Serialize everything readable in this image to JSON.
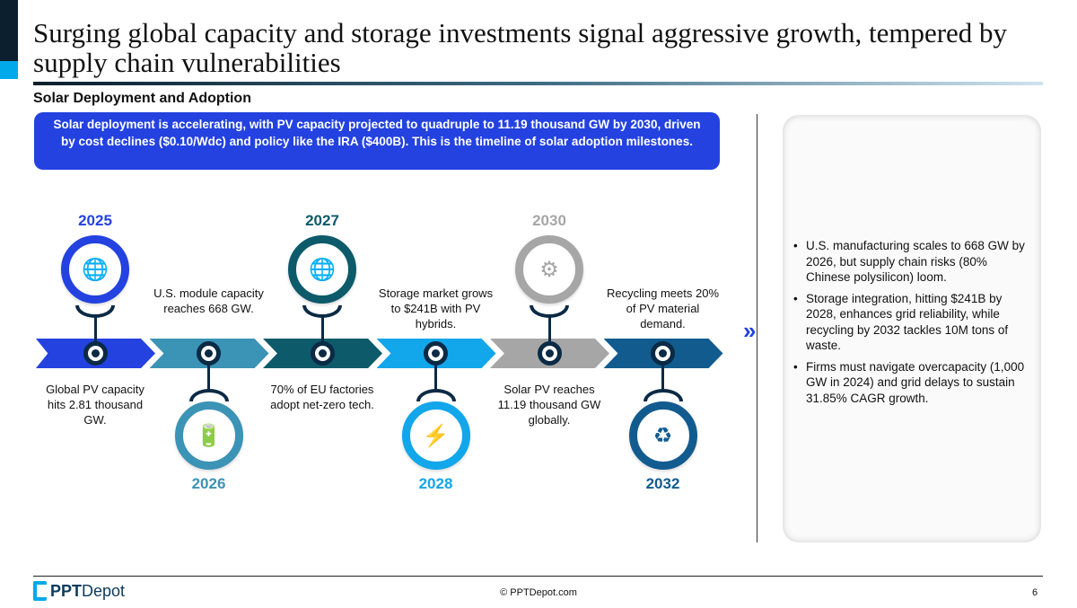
{
  "title": "Surging global capacity and storage investments signal aggressive growth, tempered by supply chain vulnerabilities",
  "subtitle": "Solar Deployment and Adoption",
  "summary": "Solar deployment is accelerating, with PV capacity projected to quadruple to 11.19 thousand GW by 2030, driven by cost declines ($0.10/Wdc) and policy like the IRA ($400B).  This is the timeline of solar adoption milestones.",
  "milestones": [
    {
      "year": "2025",
      "text": "Global PV capacity hits 2.81 thousand GW.",
      "icon": "globe-icon",
      "color": "#2342e0",
      "position": "top"
    },
    {
      "year": "2026",
      "text": "U.S. module capacity reaches 668 GW.",
      "icon": "battery-icon",
      "color": "#3b93b5",
      "position": "bottom"
    },
    {
      "year": "2027",
      "text": "70% of EU factories adopt net-zero tech.",
      "icon": "globe-icon",
      "color": "#0d5a6b",
      "position": "top"
    },
    {
      "year": "2028",
      "text": "Storage market grows to $241B with PV hybrids.",
      "icon": "cart-bolt-icon",
      "color": "#12a6ea",
      "position": "bottom"
    },
    {
      "year": "2030",
      "text": "Solar PV reaches 11.19 thousand GW globally.",
      "icon": "gear-cycle-icon",
      "color": "#a6a6a6",
      "position": "top"
    },
    {
      "year": "2032",
      "text": "Recycling meets 20% of PV material demand.",
      "icon": "battery-recycle-icon",
      "color": "#125b8f",
      "position": "bottom"
    }
  ],
  "insights": [
    "U.S. manufacturing scales to 668 GW by 2026, but supply chain risks (80% Chinese polysilicon) loom.",
    "Storage integration, hitting $241B by 2028, enhances grid reliability, while recycling by 2032 tackles 10M tons of waste.",
    "Firms must navigate overcapacity (1,000 GW in 2024) and grid delays to sustain 31.85% CAGR growth."
  ],
  "footer": {
    "logo_bold": "PPT",
    "logo_light": "Depot",
    "copyright": "© PPTDepot.com",
    "page": "6"
  }
}
